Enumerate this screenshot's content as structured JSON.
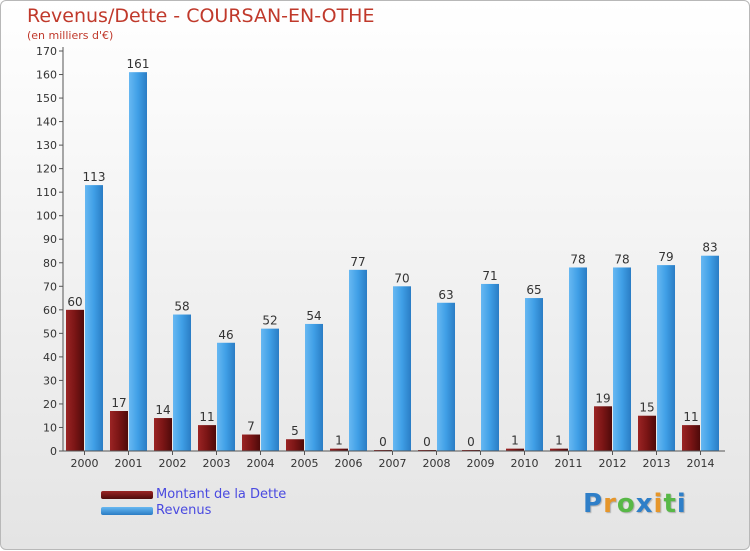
{
  "chart_data": {
    "type": "bar",
    "title": "Revenus/Dette - COURSAN-EN-OTHE",
    "subtitle": "(en milliers d'€)",
    "categories": [
      "2000",
      "2001",
      "2002",
      "2003",
      "2004",
      "2005",
      "2006",
      "2007",
      "2008",
      "2009",
      "2010",
      "2011",
      "2012",
      "2013",
      "2014"
    ],
    "series": [
      {
        "name": "Montant de la Dette",
        "color": "#7a1515",
        "values": [
          60,
          17,
          14,
          11,
          7,
          5,
          1,
          0,
          0,
          0,
          1,
          1,
          19,
          15,
          11
        ]
      },
      {
        "name": "Revenus",
        "color": "#3f9fe6",
        "values": [
          113,
          161,
          58,
          46,
          52,
          54,
          77,
          70,
          63,
          71,
          65,
          78,
          78,
          79,
          83
        ]
      }
    ],
    "ylim": [
      0,
      170
    ],
    "ytick_step": 10,
    "grid": false,
    "legend": "bottom-left"
  },
  "logo": {
    "letters": [
      {
        "char": "P",
        "color": "#2f7fc8"
      },
      {
        "char": "r",
        "color": "#e6962a"
      },
      {
        "char": "o",
        "color": "#58b847"
      },
      {
        "char": "x",
        "color": "#2f7fc8"
      },
      {
        "char": "i",
        "color": "#e6962a"
      },
      {
        "char": "t",
        "color": "#58b847"
      },
      {
        "char": "i",
        "color": "#2f7fc8"
      }
    ]
  }
}
